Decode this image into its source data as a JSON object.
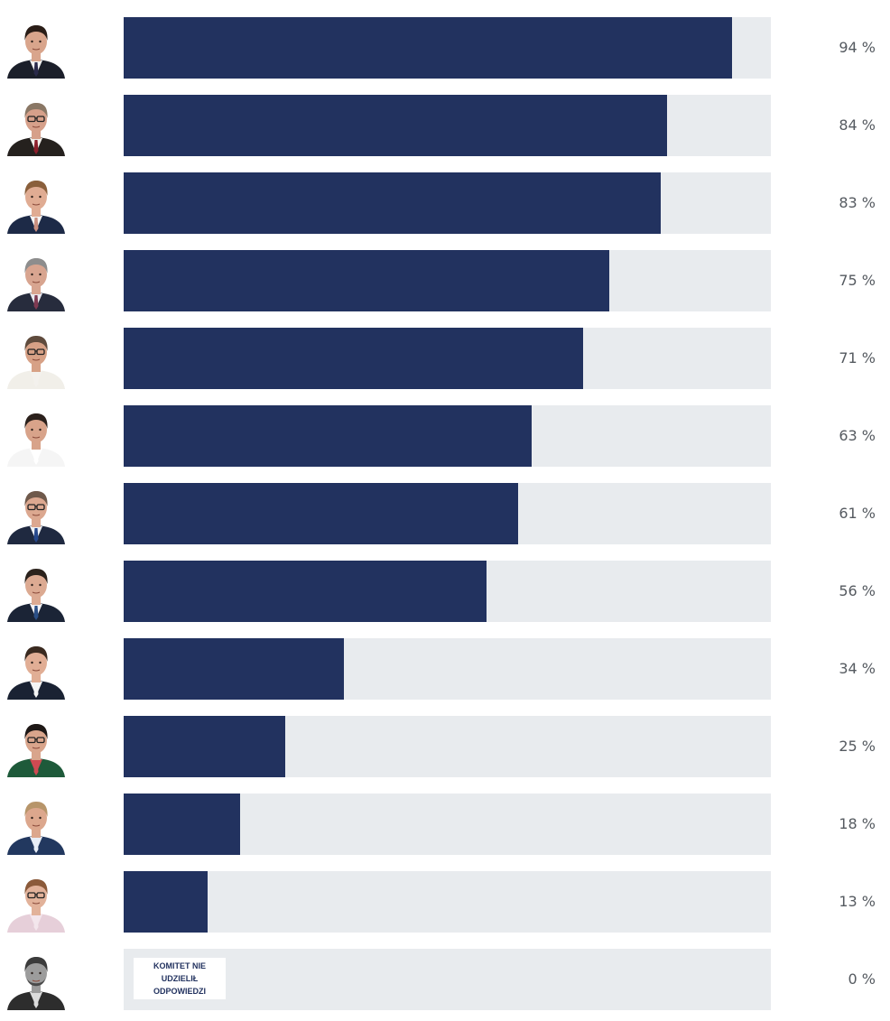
{
  "colors": {
    "bar_fill": "#22325f",
    "bar_track": "#e8ebee",
    "value_text": "#555a60",
    "note_text": "#22325f"
  },
  "chart_data": {
    "type": "bar",
    "orientation": "horizontal",
    "xlim": [
      0,
      100
    ],
    "unit_suffix": " %",
    "rows": [
      {
        "value": 94,
        "label": "94 %",
        "avatar": "candidate-portrait-icon",
        "portrait": {
          "bg": "#ffffff",
          "suit": "#1b1f2a",
          "shirt": "#f2f2f2",
          "tie": "#2a2a4a",
          "skin": "#d9a58c",
          "hair": "#2a1d17",
          "glasses": false,
          "gray": false
        }
      },
      {
        "value": 84,
        "label": "84 %",
        "avatar": "candidate-portrait-icon",
        "portrait": {
          "bg": "#ffffff",
          "suit": "#25211e",
          "shirt": "#f0eeea",
          "tie": "#8b1e2a",
          "skin": "#d6a08a",
          "hair": "#8a7765",
          "glasses": true,
          "gray": false
        }
      },
      {
        "value": 83,
        "label": "83 %",
        "avatar": "candidate-portrait-icon",
        "portrait": {
          "bg": "#ffffff",
          "suit": "#1d2a47",
          "shirt": "#f4f4f4",
          "tie": "#c98f7f",
          "skin": "#e0ac93",
          "hair": "#8a5f3b",
          "glasses": false,
          "gray": false
        }
      },
      {
        "value": 75,
        "label": "75 %",
        "avatar": "candidate-portrait-icon",
        "portrait": {
          "bg": "#ffffff",
          "suit": "#272c3d",
          "shirt": "#e9e9ef",
          "tie": "#7f3a52",
          "skin": "#d8a590",
          "hair": "#8d8d8d",
          "glasses": false,
          "gray": false
        }
      },
      {
        "value": 71,
        "label": "71 %",
        "avatar": "candidate-portrait-icon",
        "portrait": {
          "bg": "#ffffff",
          "suit": "#f1efe9",
          "shirt": "#f3f1ed",
          "tie": "#f3f1ed",
          "skin": "#d7a186",
          "hair": "#5f4b3d",
          "glasses": true,
          "gray": false
        }
      },
      {
        "value": 63,
        "label": "63 %",
        "avatar": "candidate-portrait-icon",
        "portrait": {
          "bg": "#ffffff",
          "suit": "#f5f5f5",
          "shirt": "#ffffff",
          "tie": "#ffffff",
          "skin": "#d8a38a",
          "hair": "#2b211c",
          "glasses": false,
          "gray": false
        }
      },
      {
        "value": 61,
        "label": "61 %",
        "avatar": "candidate-portrait-icon",
        "portrait": {
          "bg": "#ffffff",
          "suit": "#1f2940",
          "shirt": "#eef1f5",
          "tie": "#26488c",
          "skin": "#dca890",
          "hair": "#6f594b",
          "glasses": true,
          "gray": false
        }
      },
      {
        "value": 56,
        "label": "56 %",
        "avatar": "candidate-portrait-icon",
        "portrait": {
          "bg": "#ffffff",
          "suit": "#1b2436",
          "shirt": "#f2f2f5",
          "tie": "#2b4f86",
          "skin": "#dcaa92",
          "hair": "#2b221c",
          "glasses": false,
          "gray": false
        }
      },
      {
        "value": 34,
        "label": "34 %",
        "avatar": "candidate-portrait-icon",
        "portrait": {
          "bg": "#ffffff",
          "suit": "#1a2233",
          "shirt": "#f5f5f5",
          "tie": "#f5f5f5",
          "skin": "#e1ae95",
          "hair": "#3a2a20",
          "glasses": false,
          "gray": false
        }
      },
      {
        "value": 25,
        "label": "25 %",
        "avatar": "candidate-portrait-icon",
        "portrait": {
          "bg": "#ffffff",
          "suit": "#1e5a3a",
          "shirt": "#cf4a52",
          "tie": "#cf4a52",
          "skin": "#d9a58c",
          "hair": "#1e1816",
          "glasses": true,
          "gray": false
        }
      },
      {
        "value": 18,
        "label": "18 %",
        "avatar": "candidate-portrait-icon",
        "portrait": {
          "bg": "#ffffff",
          "suit": "#22385f",
          "shirt": "#e8eef7",
          "tie": "#e8eef7",
          "skin": "#dca78d",
          "hair": "#b7956a",
          "glasses": false,
          "gray": false
        }
      },
      {
        "value": 13,
        "label": "13 %",
        "avatar": "candidate-portrait-icon",
        "portrait": {
          "bg": "#ffffff",
          "suit": "#e6cfd9",
          "shirt": "#f3e6ec",
          "tie": "#f3e6ec",
          "skin": "#e2b29a",
          "hair": "#8b5a3a",
          "glasses": true,
          "gray": false
        }
      },
      {
        "value": 0,
        "label": "0 %",
        "avatar": "candidate-portrait-icon",
        "note": "KOMITET NIE UDZIELIŁ ODPOWIEDZI",
        "portrait": {
          "bg": "#ffffff",
          "suit": "#2d2d2d",
          "shirt": "#dcdcdc",
          "tie": "#dcdcdc",
          "skin": "#9c9c9c",
          "hair": "#3b3b3b",
          "glasses": false,
          "gray": true
        }
      }
    ]
  }
}
